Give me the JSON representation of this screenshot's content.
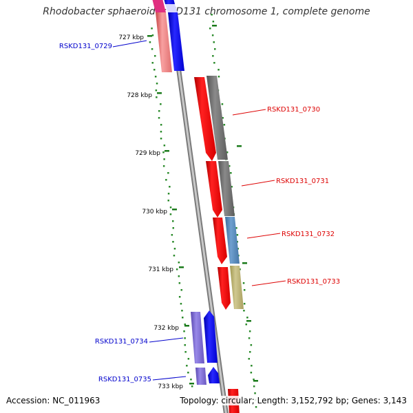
{
  "title": "Rhodobacter sphaeroides KD131 chromosome 1, complete genome",
  "accession": "Accession: NC_011963",
  "topology": "Topology: circular; Length: 3,152,792 bp; Genes: 3,143",
  "ticks": [
    "727 kbp",
    "728 kbp",
    "729 kbp",
    "730 kbp",
    "731 kbp",
    "732 kbp",
    "733 kbp"
  ],
  "genes": [
    {
      "label": "RSKD131_0729",
      "strand": "reverse",
      "color": "#0000ee"
    },
    {
      "label": "RSKD131_0730",
      "strand": "forward",
      "color": "#ee0000"
    },
    {
      "label": "RSKD131_0731",
      "strand": "forward",
      "color": "#ee0000"
    },
    {
      "label": "RSKD131_0732",
      "strand": "forward",
      "color": "#ee0000"
    },
    {
      "label": "RSKD131_0733",
      "strand": "forward",
      "color": "#ee0000"
    },
    {
      "label": "RSKD131_0734",
      "strand": "reverse",
      "color": "#0000ee"
    },
    {
      "label": "RSKD131_0735",
      "strand": "reverse",
      "color": "#0000ee"
    }
  ],
  "colors": {
    "backbone": "#9a9a9a",
    "tick_mark": "#1a7a1a",
    "gc_dots": "#2a8a2a",
    "forward_cds": "#ff0000",
    "reverse_cds": "#0000ff"
  }
}
